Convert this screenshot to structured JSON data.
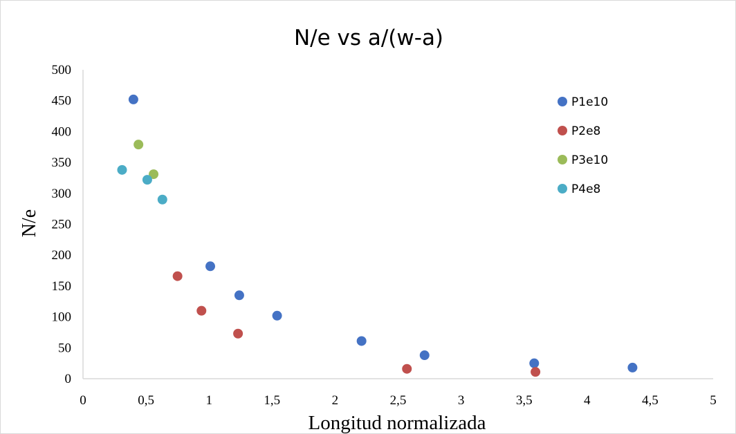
{
  "chart_data": {
    "type": "scatter",
    "title": "N/e vs a/(w-a)",
    "xlabel": "Longitud normalizada",
    "ylabel": "N/e",
    "xlim": [
      0,
      5
    ],
    "ylim": [
      0,
      500
    ],
    "x_ticks": [
      "0",
      "0,5",
      "1",
      "1,5",
      "2",
      "2,5",
      "3",
      "3,5",
      "4",
      "4,5",
      "5"
    ],
    "y_ticks": [
      "0",
      "50",
      "100",
      "150",
      "200",
      "250",
      "300",
      "350",
      "400",
      "450",
      "500"
    ],
    "grid": false,
    "legend_position": "right",
    "series": [
      {
        "name": "P1e10",
        "color": "#4472C4",
        "points": [
          [
            0.4,
            452
          ],
          [
            1.01,
            182
          ],
          [
            1.24,
            135
          ],
          [
            1.54,
            102
          ],
          [
            2.21,
            61
          ],
          [
            2.71,
            38
          ],
          [
            3.58,
            25
          ],
          [
            4.36,
            18
          ]
        ]
      },
      {
        "name": "P2e8",
        "color": "#C0504D",
        "points": [
          [
            0.75,
            166
          ],
          [
            0.94,
            110
          ],
          [
            1.23,
            73
          ],
          [
            2.57,
            16
          ],
          [
            3.59,
            11
          ]
        ]
      },
      {
        "name": "P3e10",
        "color": "#9BBB59",
        "points": [
          [
            0.44,
            379
          ],
          [
            0.56,
            331
          ]
        ]
      },
      {
        "name": "P4e8",
        "color": "#4BACC6",
        "points": [
          [
            0.31,
            338
          ],
          [
            0.51,
            322
          ],
          [
            0.63,
            290
          ]
        ]
      }
    ]
  }
}
